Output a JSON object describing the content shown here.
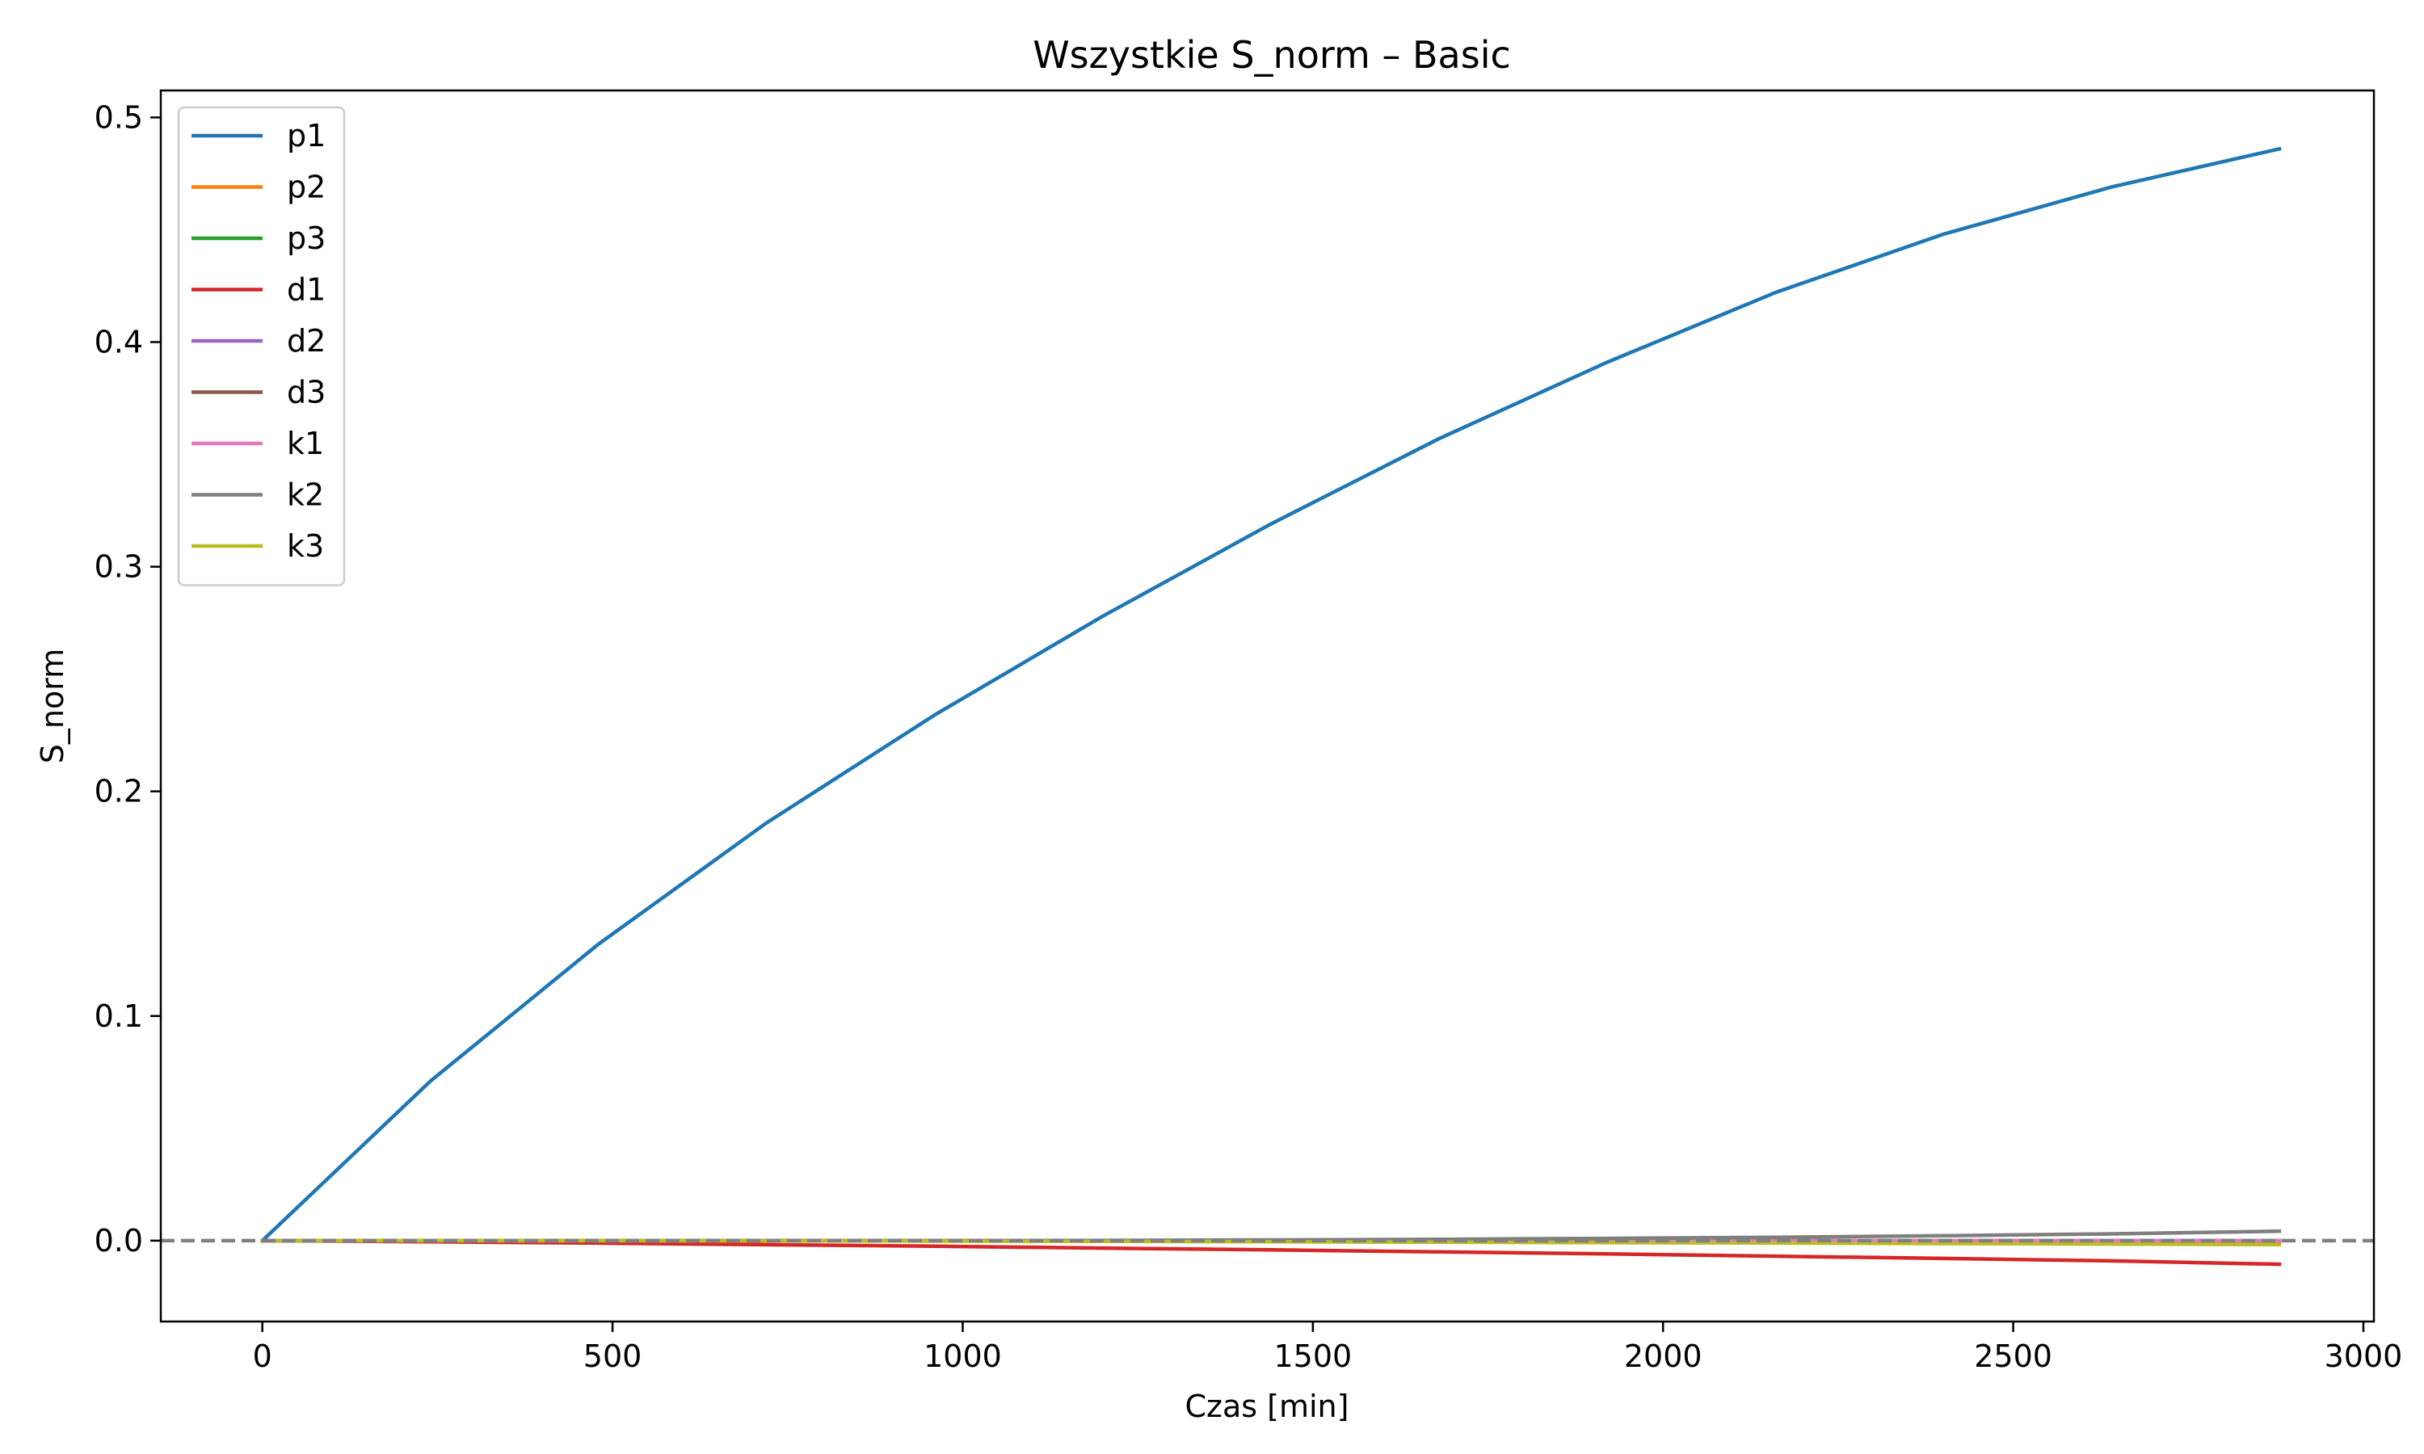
{
  "chart_data": {
    "type": "line",
    "title": "Wszystkie S_norm – Basic",
    "xlabel": "Czas [min]",
    "ylabel": "S_norm",
    "xlim": [
      -145,
      3015
    ],
    "ylim": [
      -0.036,
      0.512
    ],
    "xticks": [
      0,
      500,
      1000,
      1500,
      2000,
      2500,
      3000
    ],
    "xtick_labels": [
      "0",
      "500",
      "1000",
      "1500",
      "2000",
      "2500",
      "3000"
    ],
    "yticks": [
      0.0,
      0.1,
      0.2,
      0.3,
      0.4,
      0.5
    ],
    "ytick_labels": [
      "0.0",
      "0.1",
      "0.2",
      "0.3",
      "0.4",
      "0.5"
    ],
    "grid": false,
    "legend_position": "top-left",
    "reference_line": {
      "y": 0,
      "style": "dashed",
      "color": "#808080"
    },
    "x": [
      0,
      240,
      480,
      720,
      960,
      1200,
      1440,
      1680,
      1920,
      2160,
      2400,
      2640,
      2880
    ],
    "series": [
      {
        "name": "p1",
        "color": "#1f77b4",
        "values": [
          0.0,
          0.071,
          0.132,
          0.186,
          0.234,
          0.278,
          0.319,
          0.357,
          0.391,
          0.422,
          0.448,
          0.469,
          0.486
        ]
      },
      {
        "name": "p2",
        "color": "#ff7f0e",
        "values": [
          0.0,
          0.0,
          0.0,
          0.0,
          0.0,
          0.0,
          0.0,
          -0.0002,
          -0.0004,
          -0.0006,
          -0.0008,
          -0.001,
          -0.0012
        ]
      },
      {
        "name": "p3",
        "color": "#2ca02c",
        "values": [
          0.0,
          0.0,
          0.0,
          0.0,
          0.0,
          0.0,
          0.0,
          0.0,
          0.0,
          0.0,
          0.0,
          0.0,
          0.0
        ]
      },
      {
        "name": "d1",
        "color": "#d62728",
        "values": [
          0.0,
          -0.0005,
          -0.0011,
          -0.0018,
          -0.0025,
          -0.0033,
          -0.0041,
          -0.005,
          -0.0059,
          -0.0069,
          -0.0079,
          -0.009,
          -0.0105
        ]
      },
      {
        "name": "d2",
        "color": "#9467bd",
        "values": [
          0.0,
          0.0,
          0.0,
          0.0,
          0.0,
          0.0,
          0.0,
          0.0,
          0.0,
          0.0,
          0.0,
          0.0,
          0.0
        ]
      },
      {
        "name": "d3",
        "color": "#8c564b",
        "values": [
          0.0,
          0.0,
          0.0,
          0.0,
          0.0,
          0.0,
          0.0,
          0.0,
          0.0,
          0.0,
          0.0,
          0.0,
          0.0
        ]
      },
      {
        "name": "k1",
        "color": "#e377c2",
        "values": [
          0.0,
          0.0,
          0.0,
          0.0,
          0.0,
          0.0,
          0.0,
          0.0,
          0.0,
          0.0,
          0.0,
          0.0,
          0.0
        ]
      },
      {
        "name": "k2",
        "color": "#7f7f7f",
        "values": [
          0.0,
          0.0,
          0.0,
          0.0,
          0.0,
          0.0001,
          0.0003,
          0.0006,
          0.001,
          0.0015,
          0.0022,
          0.003,
          0.0042
        ]
      },
      {
        "name": "k3",
        "color": "#bcbd22",
        "values": [
          0.0,
          0.0,
          0.0,
          -0.0001,
          -0.0002,
          -0.0003,
          -0.0005,
          -0.0007,
          -0.0009,
          -0.0011,
          -0.0013,
          -0.0015,
          -0.0018
        ]
      }
    ]
  }
}
